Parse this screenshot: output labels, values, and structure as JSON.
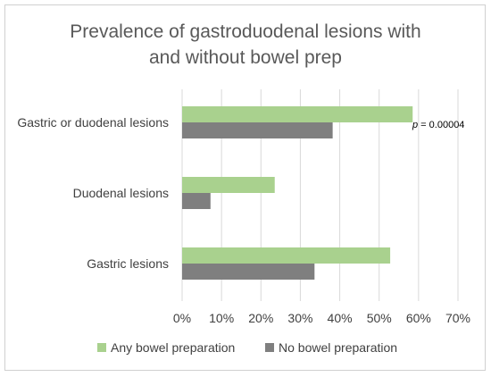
{
  "chart_data": {
    "type": "bar",
    "orientation": "horizontal",
    "title_lines": [
      "Prevalence of gastroduodenal lesions with",
      "and without bowel prep"
    ],
    "categories": [
      "Gastric or duodenal lesions",
      "Duodenal lesions",
      "Gastric lesions"
    ],
    "series": [
      {
        "name": "Any bowel preparation",
        "color": "#a9d18e",
        "values": [
          58.5,
          23.5,
          52.8
        ]
      },
      {
        "name": "No bowel preparation",
        "color": "#7f7f7f",
        "values": [
          38.2,
          7.2,
          33.6
        ]
      }
    ],
    "xlim": [
      0,
      70
    ],
    "xticks": [
      "0%",
      "10%",
      "20%",
      "30%",
      "40%",
      "50%",
      "60%",
      "70%"
    ],
    "xtick_values": [
      0,
      10,
      20,
      30,
      40,
      50,
      60,
      70
    ],
    "grid": true,
    "legend_position": "bottom",
    "annotation": {
      "italic": "p",
      "rest": " = 0.00004"
    }
  }
}
